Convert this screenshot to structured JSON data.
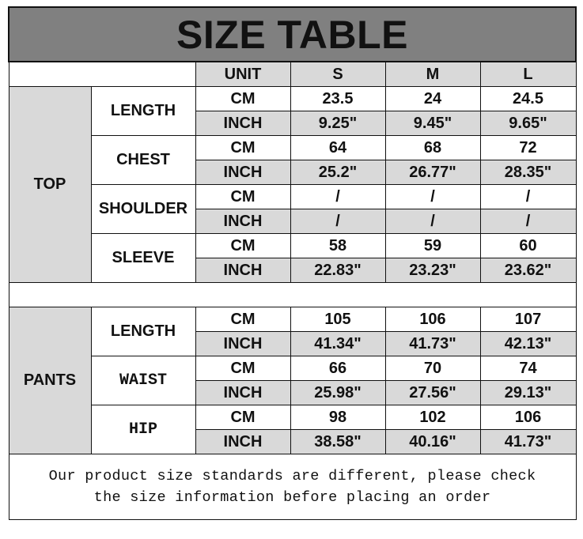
{
  "title": "SIZE TABLE",
  "header": {
    "unit": "UNIT",
    "sizes": [
      "S",
      "M",
      "L"
    ]
  },
  "sections": [
    {
      "name": "TOP",
      "measures": [
        {
          "name": "LENGTH",
          "font": "sans",
          "rows": [
            {
              "unit": "CM",
              "values": [
                "23.5",
                "24",
                "24.5"
              ]
            },
            {
              "unit": "INCH",
              "values": [
                "9.25\"",
                "9.45\"",
                "9.65\""
              ]
            }
          ]
        },
        {
          "name": "CHEST",
          "font": "sans",
          "rows": [
            {
              "unit": "CM",
              "values": [
                "64",
                "68",
                "72"
              ]
            },
            {
              "unit": "INCH",
              "values": [
                "25.2\"",
                "26.77\"",
                "28.35\""
              ]
            }
          ]
        },
        {
          "name": "SHOULDER",
          "font": "sans",
          "rows": [
            {
              "unit": "CM",
              "values": [
                "/",
                "/",
                "/"
              ]
            },
            {
              "unit": "INCH",
              "values": [
                "/",
                "/",
                "/"
              ]
            }
          ]
        },
        {
          "name": "SLEEVE",
          "font": "sans",
          "rows": [
            {
              "unit": "CM",
              "values": [
                "58",
                "59",
                "60"
              ]
            },
            {
              "unit": "INCH",
              "values": [
                "22.83\"",
                "23.23\"",
                "23.62\""
              ]
            }
          ]
        }
      ]
    },
    {
      "name": "PANTS",
      "measures": [
        {
          "name": "LENGTH",
          "font": "sans",
          "rows": [
            {
              "unit": "CM",
              "values": [
                "105",
                "106",
                "107"
              ]
            },
            {
              "unit": "INCH",
              "values": [
                "41.34\"",
                "41.73\"",
                "42.13\""
              ]
            }
          ]
        },
        {
          "name": "WAIST",
          "font": "mono",
          "rows": [
            {
              "unit": "CM",
              "values": [
                "66",
                "70",
                "74"
              ]
            },
            {
              "unit": "INCH",
              "values": [
                "25.98\"",
                "27.56\"",
                "29.13\""
              ]
            }
          ]
        },
        {
          "name": "HIP",
          "font": "mono",
          "rows": [
            {
              "unit": "CM",
              "values": [
                "98",
                "102",
                "106"
              ]
            },
            {
              "unit": "INCH",
              "values": [
                "38.58\"",
                "40.16\"",
                "41.73\""
              ]
            }
          ]
        }
      ]
    }
  ],
  "footer": {
    "line1": "Our product size standards are different, please check",
    "line2": "the size information before placing an order"
  },
  "colors": {
    "title_bg": "#808080",
    "shade": "#d9d9d9"
  }
}
